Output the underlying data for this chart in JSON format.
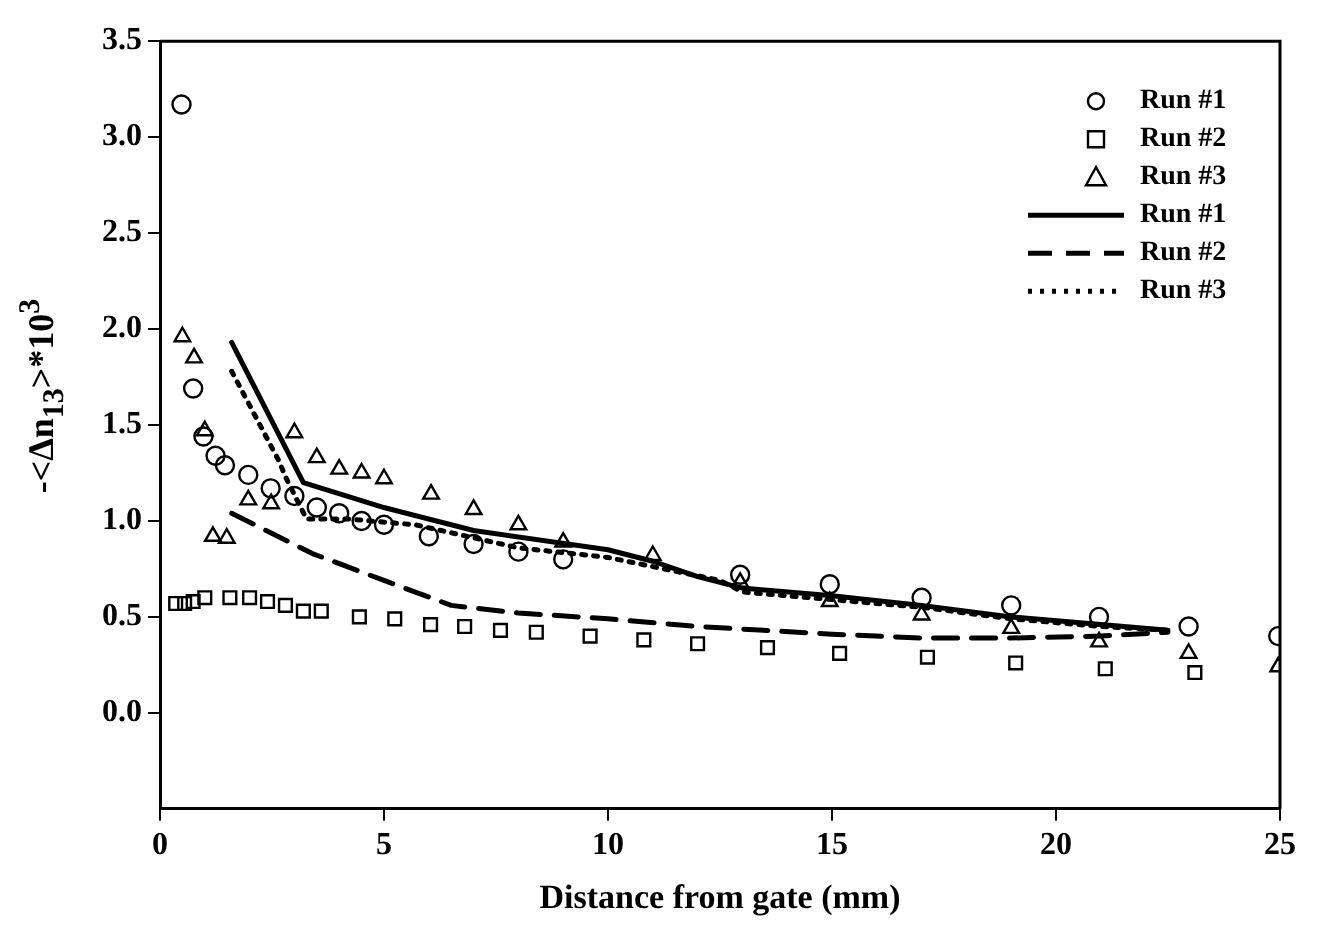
{
  "chart_data": {
    "type": "scatter",
    "xlabel": "Distance from gate (mm)",
    "ylabel": "-<Δn$_{13}$>*10$^{3}$",
    "xlim": [
      0,
      25
    ],
    "xticks": [
      0,
      5,
      10,
      15,
      20,
      25
    ],
    "ylim": [
      -0.5,
      3.5
    ],
    "yticks": [
      {
        "value": 0,
        "label": "0.0"
      },
      0.5,
      {
        "value": 1,
        "label": "1.0"
      },
      1.5,
      {
        "value": 2,
        "label": "2.0"
      },
      2.5,
      {
        "value": 3,
        "label": "3.0"
      },
      3.5
    ],
    "legend": "top right",
    "series": [
      {
        "name": "Run #1",
        "marker": "circle",
        "color": "#000000",
        "x": [
          0.48,
          0.74,
          0.97,
          1.24,
          1.45,
          1.97,
          2.47,
          3.0,
          3.5,
          4.0,
          4.5,
          5.0,
          6.0,
          7.0,
          8.0,
          9.0,
          12.95,
          14.95,
          17.0,
          19.0,
          20.96,
          22.96,
          24.96
        ],
        "values": [
          3.17,
          1.69,
          1.44,
          1.34,
          1.29,
          1.24,
          1.17,
          1.13,
          1.07,
          1.04,
          1.0,
          0.98,
          0.92,
          0.88,
          0.84,
          0.8,
          0.72,
          0.67,
          0.6,
          0.56,
          0.5,
          0.45,
          0.4
        ]
      },
      {
        "name": "Run #2",
        "marker": "square",
        "color": "#000000",
        "x": [
          0.35,
          0.55,
          0.74,
          1.0,
          1.56,
          2.0,
          2.4,
          2.8,
          3.2,
          3.6,
          4.45,
          5.24,
          6.04,
          6.8,
          7.6,
          8.4,
          9.6,
          10.8,
          12.0,
          13.56,
          15.17,
          17.13,
          19.1,
          21.1,
          23.1
        ],
        "values": [
          0.57,
          0.57,
          0.58,
          0.6,
          0.6,
          0.6,
          0.58,
          0.56,
          0.53,
          0.53,
          0.5,
          0.49,
          0.46,
          0.45,
          0.43,
          0.42,
          0.4,
          0.38,
          0.36,
          0.34,
          0.31,
          0.29,
          0.26,
          0.23,
          0.21
        ]
      },
      {
        "name": "Run #3",
        "marker": "triangle",
        "color": "#000000",
        "x": [
          0.5,
          0.76,
          1.0,
          1.18,
          1.49,
          1.97,
          2.48,
          3.0,
          3.5,
          4.0,
          4.5,
          5.0,
          6.05,
          7.0,
          8.0,
          9.0,
          11.0,
          12.95,
          14.95,
          17.0,
          19.0,
          20.96,
          22.96,
          24.96
        ],
        "values": [
          1.96,
          1.85,
          1.47,
          0.92,
          0.91,
          1.11,
          1.09,
          1.46,
          1.33,
          1.27,
          1.25,
          1.22,
          1.14,
          1.06,
          0.98,
          0.89,
          0.82,
          0.68,
          0.58,
          0.51,
          0.44,
          0.37,
          0.31,
          0.24
        ]
      },
      {
        "name": "Run #1",
        "type": "line",
        "line_style": "solid",
        "color": "#000000",
        "x": [
          1.6,
          3.2,
          5,
          7,
          10,
          11,
          12,
          13,
          15,
          17,
          19,
          21,
          22.5
        ],
        "values": [
          1.93,
          1.2,
          1.07,
          0.95,
          0.85,
          0.79,
          0.71,
          0.65,
          0.61,
          0.56,
          0.5,
          0.46,
          0.43
        ]
      },
      {
        "name": "Run #2",
        "type": "line",
        "line_style": "dashed",
        "color": "#000000",
        "x": [
          1.6,
          3.4,
          5,
          6.5,
          8,
          10,
          12,
          15,
          17,
          19,
          21,
          22.5
        ],
        "values": [
          1.04,
          0.83,
          0.69,
          0.56,
          0.52,
          0.49,
          0.45,
          0.41,
          0.39,
          0.39,
          0.4,
          0.42
        ]
      },
      {
        "name": "Run #3",
        "type": "line",
        "line_style": "dotted",
        "color": "#000000",
        "x": [
          1.6,
          2.66,
          2.8,
          3.27,
          4.2,
          5.7,
          8,
          10,
          12.5,
          13,
          17,
          19,
          21,
          22.5
        ],
        "values": [
          1.78,
          1.31,
          1.23,
          1.01,
          1.01,
          0.98,
          0.86,
          0.81,
          0.69,
          0.63,
          0.55,
          0.49,
          0.45,
          0.43
        ]
      }
    ]
  }
}
